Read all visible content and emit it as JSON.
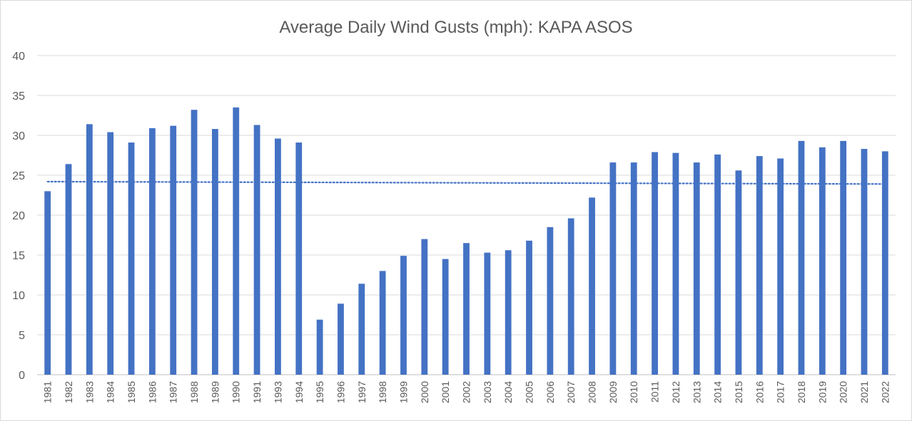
{
  "chart_data": {
    "type": "bar",
    "title": "Average Daily Wind Gusts (mph): KAPA ASOS",
    "xlabel": "",
    "ylabel": "",
    "ylim": [
      0,
      40
    ],
    "yticks": [
      0,
      5,
      10,
      15,
      20,
      25,
      30,
      35,
      40
    ],
    "grid": true,
    "legend": "none",
    "bar_color": "#4472C4",
    "trendline": {
      "type": "linear",
      "style": "dotted",
      "color": "#4472C4",
      "start_value": 24.2,
      "end_value": 23.9
    },
    "categories": [
      "1981",
      "1982",
      "1983",
      "1984",
      "1985",
      "1986",
      "1987",
      "1988",
      "1989",
      "1990",
      "1991",
      "1993",
      "1994",
      "1995",
      "1996",
      "1997",
      "1998",
      "1999",
      "2000",
      "2001",
      "2002",
      "2003",
      "2004",
      "2005",
      "2006",
      "2007",
      "2008",
      "2009",
      "2010",
      "2011",
      "2012",
      "2013",
      "2014",
      "2015",
      "2016",
      "2017",
      "2018",
      "2019",
      "2020",
      "2021",
      "2022"
    ],
    "values": [
      23.0,
      26.4,
      31.4,
      30.4,
      29.1,
      30.9,
      31.2,
      33.2,
      30.8,
      33.5,
      31.3,
      29.6,
      29.1,
      6.9,
      8.9,
      11.4,
      13.0,
      14.9,
      17.0,
      14.5,
      16.5,
      15.3,
      15.6,
      16.8,
      18.5,
      19.6,
      22.2,
      26.6,
      26.6,
      27.9,
      27.8,
      26.6,
      27.6,
      25.6,
      27.4,
      27.1,
      29.3,
      28.5,
      29.3,
      28.3,
      28.0
    ]
  }
}
